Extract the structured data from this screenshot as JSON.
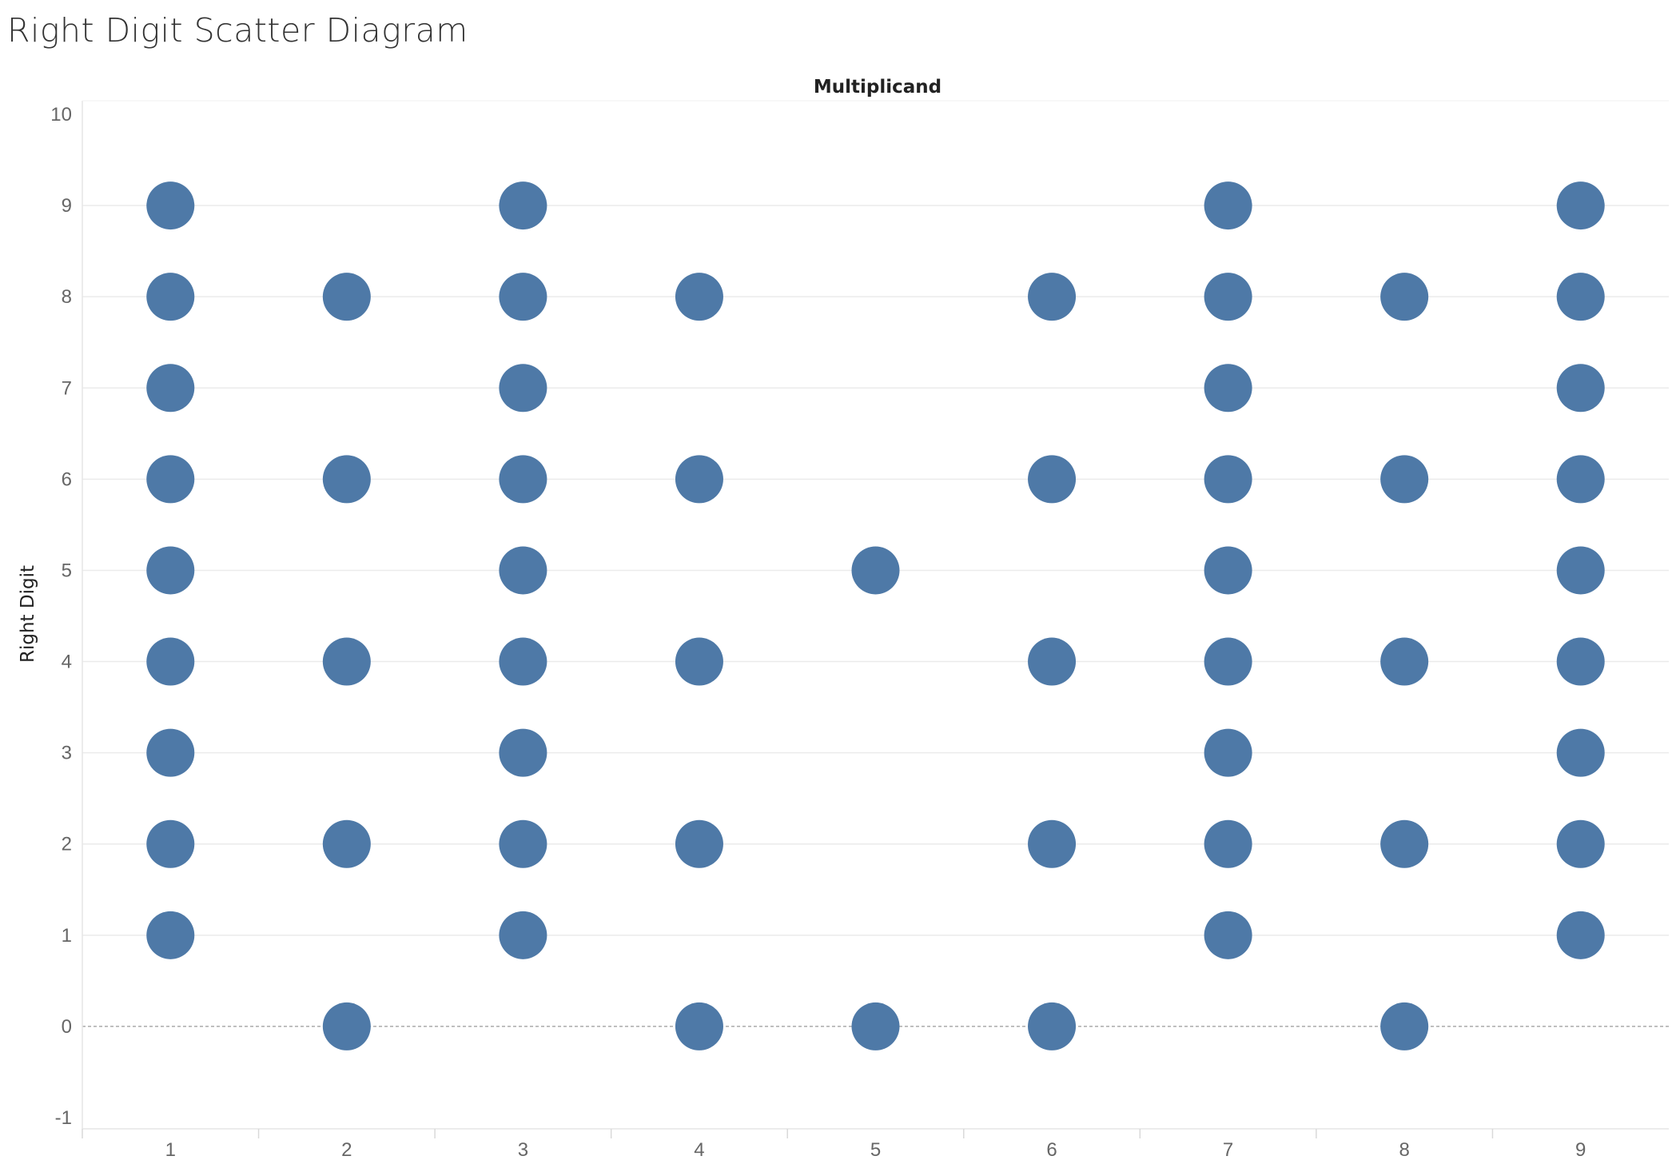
{
  "page": {
    "title": "Right Digit Scatter Diagram"
  },
  "chart_data": {
    "type": "scatter",
    "title": "Right Digit Scatter Diagram",
    "column_header": "Multiplicand",
    "xlabel": "",
    "ylabel": "Right Digit",
    "x_categories": [
      "1",
      "2",
      "3",
      "4",
      "5",
      "6",
      "7",
      "8",
      "9"
    ],
    "ylim": [
      -1,
      10
    ],
    "y_ticks": [
      -1,
      0,
      1,
      2,
      3,
      4,
      5,
      6,
      7,
      8,
      9,
      10
    ],
    "grid": true,
    "zero_line": "dashed",
    "mark_color": "#4e79a7",
    "grid_color": "#ebebeb",
    "points": [
      {
        "x": "1",
        "y": [
          1,
          2,
          3,
          4,
          5,
          6,
          7,
          8,
          9
        ]
      },
      {
        "x": "2",
        "y": [
          0,
          2,
          4,
          6,
          8
        ]
      },
      {
        "x": "3",
        "y": [
          1,
          2,
          3,
          4,
          5,
          6,
          7,
          8,
          9
        ]
      },
      {
        "x": "4",
        "y": [
          0,
          2,
          4,
          6,
          8
        ]
      },
      {
        "x": "5",
        "y": [
          0,
          5
        ]
      },
      {
        "x": "6",
        "y": [
          0,
          2,
          4,
          6,
          8
        ]
      },
      {
        "x": "7",
        "y": [
          1,
          2,
          3,
          4,
          5,
          6,
          7,
          8,
          9
        ]
      },
      {
        "x": "8",
        "y": [
          0,
          2,
          4,
          6,
          8
        ]
      },
      {
        "x": "9",
        "y": [
          1,
          2,
          3,
          4,
          5,
          6,
          7,
          8,
          9
        ]
      }
    ]
  }
}
